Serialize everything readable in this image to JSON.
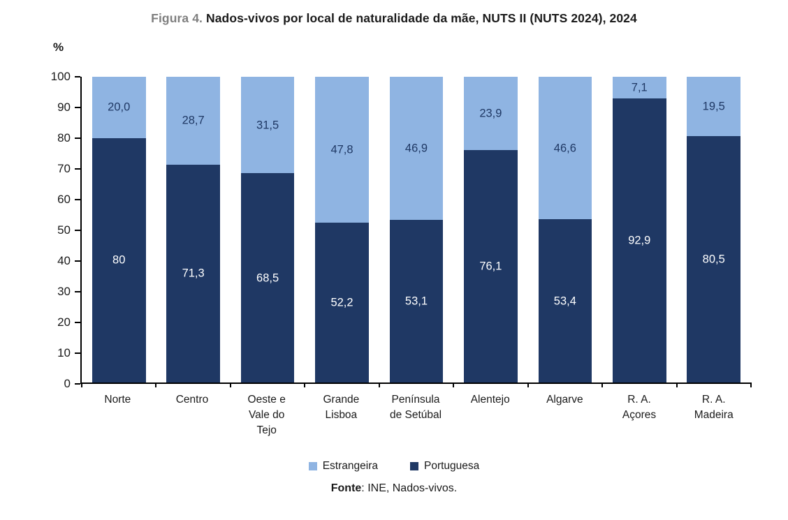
{
  "title": {
    "prefix": "Figura 4.",
    "text": " Nados-vivos por local de naturalidade da mãe, NUTS II (NUTS 2024), 2024"
  },
  "chart_data": {
    "type": "bar",
    "stacked": true,
    "ylabel": "%",
    "ylim": [
      0,
      100
    ],
    "yticks": [
      "0",
      "10",
      "20",
      "30",
      "40",
      "50",
      "60",
      "70",
      "80",
      "90",
      "100"
    ],
    "grid": false,
    "legend_position": "bottom",
    "categories": [
      {
        "label": "Norte",
        "lines": [
          "Norte"
        ]
      },
      {
        "label": "Centro",
        "lines": [
          "Centro"
        ]
      },
      {
        "label": "Oeste e Vale do Tejo",
        "lines": [
          "Oeste e",
          "Vale do",
          "Tejo"
        ]
      },
      {
        "label": "Grande Lisboa",
        "lines": [
          "Grande",
          "Lisboa"
        ]
      },
      {
        "label": "Península de Setúbal",
        "lines": [
          "Península",
          "de Setúbal"
        ]
      },
      {
        "label": "Alentejo",
        "lines": [
          "Alentejo"
        ]
      },
      {
        "label": "Algarve",
        "lines": [
          "Algarve"
        ]
      },
      {
        "label": "R. A. Açores",
        "lines": [
          "R. A.",
          "Açores"
        ]
      },
      {
        "label": "R. A. Madeira",
        "lines": [
          "R. A.",
          "Madeira"
        ]
      }
    ],
    "series": [
      {
        "name": "Portuguesa",
        "color": "#1F3864",
        "label_color": "#FFFFFF",
        "values": [
          80,
          71.3,
          68.5,
          52.2,
          53.1,
          76.1,
          53.4,
          92.9,
          80.5
        ],
        "labels": [
          "80",
          "71,3",
          "68,5",
          "52,2",
          "53,1",
          "76,1",
          "53,4",
          "92,9",
          "80,5"
        ]
      },
      {
        "name": "Estrangeira",
        "color": "#8FB4E2",
        "label_color": "#1F3864",
        "values": [
          20,
          28.7,
          31.5,
          47.8,
          46.9,
          23.9,
          46.6,
          7.1,
          19.5
        ],
        "labels": [
          "20,0",
          "28,7",
          "31,5",
          "47,8",
          "46,9",
          "23,9",
          "46,6",
          "7,1",
          "19,5"
        ]
      }
    ],
    "legend": [
      {
        "label": "Estrangeira",
        "color": "#8FB4E2"
      },
      {
        "label": "Portuguesa",
        "color": "#1F3864"
      }
    ]
  },
  "footer": {
    "source_label": "Fonte",
    "source_text": ": INE, Nados-vivos."
  }
}
